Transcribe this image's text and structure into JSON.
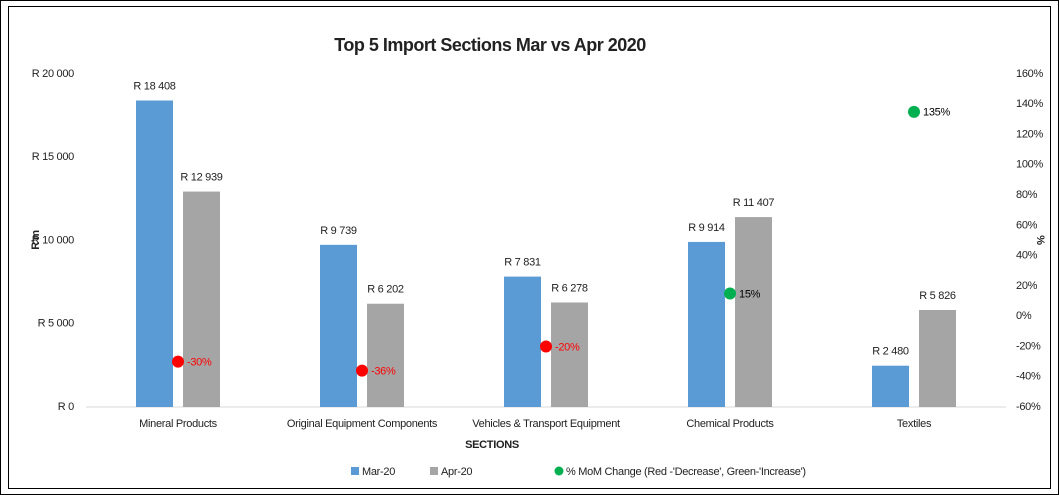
{
  "chart_data": {
    "type": "bar",
    "title": "Top 5 Import Sections Mar vs Apr 2020",
    "x_label": "SECTIONS",
    "y_label": "R'm",
    "y2_label": "%",
    "categories": [
      "Mineral Products",
      "Original Equipment Components",
      "Vehicles & Transport Equipment",
      "Chemical Products",
      "Textiles"
    ],
    "series": [
      {
        "name": "Mar-20",
        "color": "#5b9bd5",
        "values": [
          18408,
          9739,
          7831,
          9914,
          2480
        ],
        "value_labels": [
          "R 18 408",
          "R 9 739",
          "R 7 831",
          "R 9 914",
          "R 2 480"
        ]
      },
      {
        "name": "Apr-20",
        "color": "#a5a5a5",
        "values": [
          12939,
          6202,
          6278,
          11407,
          5826
        ],
        "value_labels": [
          "R 12 939",
          "R 6 202",
          "R 6 278",
          "R 11 407",
          "R 5 826"
        ]
      },
      {
        "name": "% MoM Change (Red -'Decrease', Green-'Increase')",
        "type": "scatter",
        "axis": "y2",
        "color": "#00b050",
        "colors": [
          "#ff0000",
          "#ff0000",
          "#ff0000",
          "#00b050",
          "#00b050"
        ],
        "label_colors": [
          "#ff0000",
          "#ff0000",
          "#ff0000",
          "#000000",
          "#000000"
        ],
        "values": [
          -30,
          -36,
          -20,
          15,
          135
        ],
        "value_labels": [
          "-30%",
          "-36%",
          "-20%",
          "15%",
          "135%"
        ]
      }
    ],
    "ylim": [
      0,
      20000
    ],
    "yticks": [
      {
        "value": 0,
        "label": "R 0"
      },
      {
        "value": 5000,
        "label": "R 5 000"
      },
      {
        "value": 10000,
        "label": "R 10 000"
      },
      {
        "value": 15000,
        "label": "R 15 000"
      },
      {
        "value": 20000,
        "label": "R 20 000"
      }
    ],
    "y2lim": [
      -60,
      160
    ],
    "y2ticks": [
      {
        "value": -60,
        "label": "-60%"
      },
      {
        "value": -40,
        "label": "-40%"
      },
      {
        "value": -20,
        "label": "-20%"
      },
      {
        "value": 0,
        "label": "0%"
      },
      {
        "value": 20,
        "label": "20%"
      },
      {
        "value": 40,
        "label": "40%"
      },
      {
        "value": 60,
        "label": "60%"
      },
      {
        "value": 80,
        "label": "80%"
      },
      {
        "value": 100,
        "label": "100%"
      },
      {
        "value": 120,
        "label": "120%"
      },
      {
        "value": 140,
        "label": "140%"
      },
      {
        "value": 160,
        "label": "160%"
      }
    ],
    "grid": false,
    "legend": "bottom"
  }
}
